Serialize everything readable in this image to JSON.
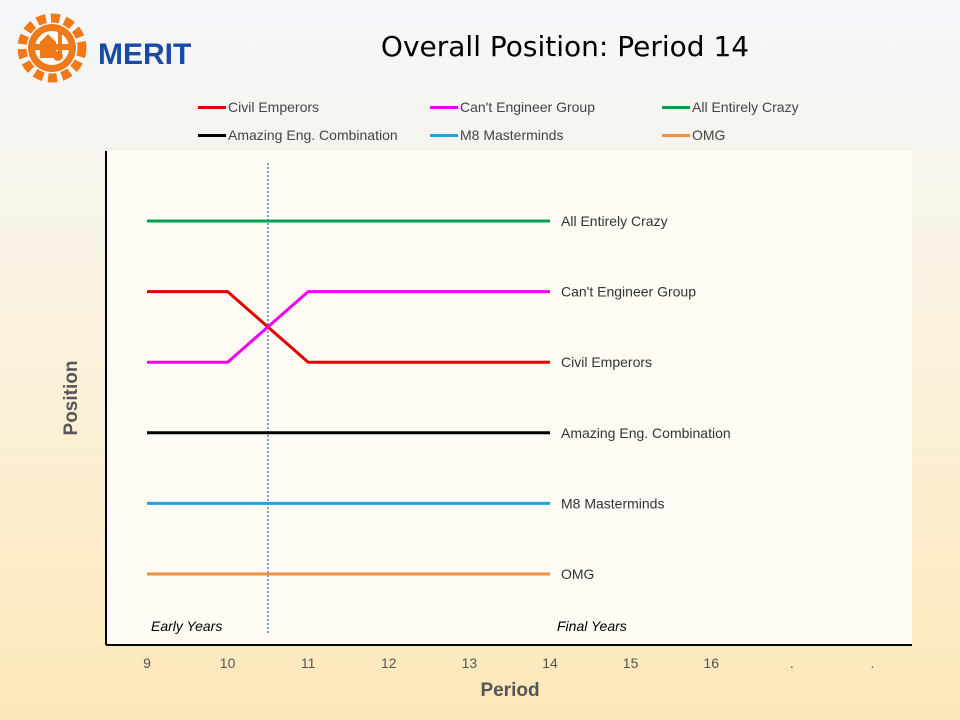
{
  "logo": {
    "text": "MERIT"
  },
  "chart_data": {
    "type": "line",
    "title": "Overall Position: Period 14",
    "xlabel": "Period",
    "ylabel": "Position",
    "x_ticks": [
      "9",
      "10",
      "11",
      "12",
      "13",
      "14",
      "15",
      "16",
      ".",
      "."
    ],
    "x": [
      9,
      10,
      11,
      12,
      13,
      14
    ],
    "y_range": [
      1,
      6
    ],
    "legend_position": "top",
    "series": [
      {
        "name": "Civil Emperors",
        "color": "#e00000",
        "values": [
          5,
          5,
          4,
          4,
          4,
          4
        ]
      },
      {
        "name": "Can't Engineer Group",
        "color": "#ee00ee",
        "values": [
          4,
          4,
          5,
          5,
          5,
          5
        ]
      },
      {
        "name": "All Entirely Crazy",
        "color": "#00a050",
        "values": [
          6,
          6,
          6,
          6,
          6,
          6
        ]
      },
      {
        "name": "Amazing Eng. Combination",
        "color": "#000000",
        "values": [
          3,
          3,
          3,
          3,
          3,
          3
        ]
      },
      {
        "name": "M8 Masterminds",
        "color": "#1aa5e0",
        "values": [
          2,
          2,
          2,
          2,
          2,
          2
        ]
      },
      {
        "name": "OMG",
        "color": "#ee9040",
        "values": [
          1,
          1,
          1,
          1,
          1,
          1
        ]
      }
    ],
    "annotations": [
      {
        "text": "Early Years",
        "x": 9
      },
      {
        "text": "Final Years",
        "x": 14
      }
    ],
    "divider_x": 10.5
  }
}
